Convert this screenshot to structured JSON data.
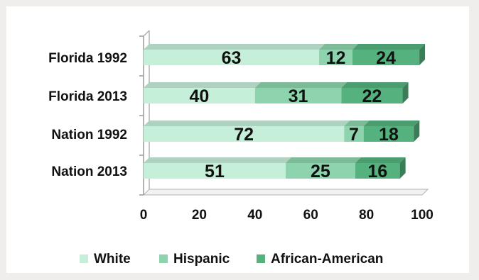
{
  "chart_data": {
    "type": "bar",
    "orientation": "horizontal",
    "stacked": true,
    "style": "3d",
    "categories": [
      "Florida 1992",
      "Florida 2013",
      "Nation 1992",
      "Nation 2013"
    ],
    "series": [
      {
        "name": "White",
        "values": [
          63,
          40,
          72,
          51
        ],
        "color": "#c6efd9"
      },
      {
        "name": "Hispanic",
        "values": [
          12,
          31,
          7,
          25
        ],
        "color": "#8dd3ad"
      },
      {
        "name": "African-American",
        "values": [
          24,
          22,
          18,
          16
        ],
        "color": "#55b27e"
      }
    ],
    "xlim": [
      0,
      100
    ],
    "xticks": [
      "0",
      "20",
      "40",
      "60",
      "80",
      "100"
    ],
    "grid": false,
    "legend_position": "bottom"
  }
}
